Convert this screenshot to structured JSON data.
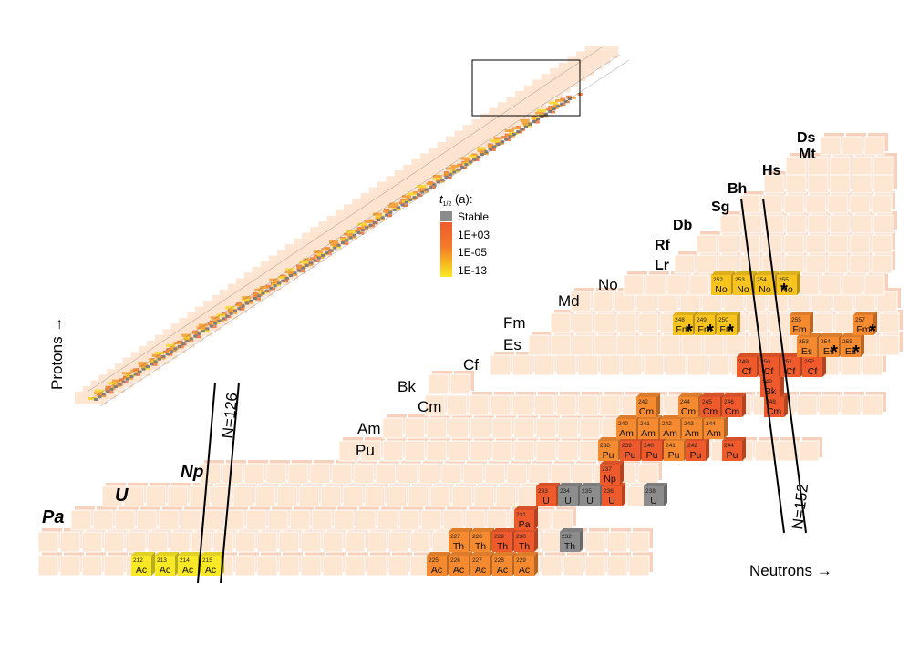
{
  "colors": {
    "stable": "#8c8c8c",
    "long": "#ee5a2c",
    "medium": "#f58a30",
    "short": "#f7c31e",
    "veryshort": "#f9e826",
    "background_cell": "#fde6d2",
    "background_cell_side": "#f7d1bb"
  },
  "legend": {
    "title_symbol": "t",
    "title_sub": "1/2",
    "title_unit": " (a):",
    "items": [
      {
        "label": "Stable",
        "color": "#8c8c8c"
      },
      {
        "label": "1E+03",
        "color": "#ee5a2c"
      },
      {
        "label": "1E-05",
        "color": "#f7a21e"
      },
      {
        "label": "1E-13",
        "color": "#f9e826"
      }
    ]
  },
  "axes": {
    "protons_label": "Protons →",
    "neutrons_label": "Neutrons →",
    "magic_left": "N=126",
    "magic_right": "N=152"
  },
  "element_labels": [
    {
      "text": "Pa",
      "style": "italic-bold"
    },
    {
      "text": "U",
      "style": "italic-bold"
    },
    {
      "text": "Np",
      "style": "italic-bold"
    },
    {
      "text": "Pu",
      "style": "normal"
    },
    {
      "text": "Am",
      "style": "normal"
    },
    {
      "text": "Cm",
      "style": "normal"
    },
    {
      "text": "Bk",
      "style": "normal"
    },
    {
      "text": "Cf",
      "style": "normal"
    },
    {
      "text": "Es",
      "style": "normal"
    },
    {
      "text": "Fm",
      "style": "normal"
    },
    {
      "text": "Md",
      "style": "normal"
    },
    {
      "text": "No",
      "style": "normal"
    },
    {
      "text": "Lr",
      "style": "bold"
    },
    {
      "text": "Rf",
      "style": "bold"
    },
    {
      "text": "Db",
      "style": "bold"
    },
    {
      "text": "Sg",
      "style": "bold"
    },
    {
      "text": "Bh",
      "style": "bold"
    },
    {
      "text": "Hs",
      "style": "bold"
    },
    {
      "text": "Mt",
      "style": "bold"
    },
    {
      "text": "Ds",
      "style": "bold"
    }
  ],
  "nuclides": [
    {
      "mass": "212",
      "symbol": "Ac",
      "category": "veryshort"
    },
    {
      "mass": "213",
      "symbol": "Ac",
      "category": "veryshort"
    },
    {
      "mass": "214",
      "symbol": "Ac",
      "category": "veryshort"
    },
    {
      "mass": "215",
      "symbol": "Ac",
      "category": "veryshort"
    },
    {
      "mass": "225",
      "symbol": "Ac",
      "category": "medium"
    },
    {
      "mass": "226",
      "symbol": "Ac",
      "category": "medium"
    },
    {
      "mass": "227",
      "symbol": "Ac",
      "category": "medium"
    },
    {
      "mass": "228",
      "symbol": "Ac",
      "category": "medium"
    },
    {
      "mass": "229",
      "symbol": "Ac",
      "category": "medium"
    },
    {
      "mass": "227",
      "symbol": "Th",
      "category": "medium"
    },
    {
      "mass": "228",
      "symbol": "Th",
      "category": "medium"
    },
    {
      "mass": "229",
      "symbol": "Th",
      "category": "long"
    },
    {
      "mass": "230",
      "symbol": "Th",
      "category": "long"
    },
    {
      "mass": "232",
      "symbol": "Th",
      "category": "stable"
    },
    {
      "mass": "231",
      "symbol": "Pa",
      "category": "long"
    },
    {
      "mass": "233",
      "symbol": "U",
      "category": "long"
    },
    {
      "mass": "234",
      "symbol": "U",
      "category": "stable"
    },
    {
      "mass": "235",
      "symbol": "U",
      "category": "stable"
    },
    {
      "mass": "236",
      "symbol": "U",
      "category": "long"
    },
    {
      "mass": "238",
      "symbol": "U",
      "category": "stable"
    },
    {
      "mass": "237",
      "symbol": "Np",
      "category": "long"
    },
    {
      "mass": "238",
      "symbol": "Pu",
      "category": "medium"
    },
    {
      "mass": "239",
      "symbol": "Pu",
      "category": "long"
    },
    {
      "mass": "240",
      "symbol": "Pu",
      "category": "long"
    },
    {
      "mass": "241",
      "symbol": "Pu",
      "category": "medium"
    },
    {
      "mass": "242",
      "symbol": "Pu",
      "category": "long"
    },
    {
      "mass": "244",
      "symbol": "Pu",
      "category": "long"
    },
    {
      "mass": "240",
      "symbol": "Am",
      "category": "medium"
    },
    {
      "mass": "241",
      "symbol": "Am",
      "category": "medium"
    },
    {
      "mass": "242",
      "symbol": "Am",
      "category": "medium"
    },
    {
      "mass": "243",
      "symbol": "Am",
      "category": "medium"
    },
    {
      "mass": "244",
      "symbol": "Am",
      "category": "medium"
    },
    {
      "mass": "242",
      "symbol": "Cm",
      "category": "medium"
    },
    {
      "mass": "244",
      "symbol": "Cm",
      "category": "medium"
    },
    {
      "mass": "245",
      "symbol": "Cm",
      "category": "long"
    },
    {
      "mass": "246",
      "symbol": "Cm",
      "category": "long"
    },
    {
      "mass": "248",
      "symbol": "Cm",
      "category": "long"
    },
    {
      "mass": "249",
      "symbol": "Bk",
      "category": "long"
    },
    {
      "mass": "249",
      "symbol": "Cf",
      "category": "long"
    },
    {
      "mass": "250",
      "symbol": "Cf",
      "category": "long"
    },
    {
      "mass": "251",
      "symbol": "Cf",
      "category": "long"
    },
    {
      "mass": "252",
      "symbol": "Cf",
      "category": "long"
    },
    {
      "mass": "253",
      "symbol": "Es",
      "category": "medium"
    },
    {
      "mass": "254",
      "symbol": "Es",
      "category": "medium"
    },
    {
      "mass": "255",
      "symbol": "Es",
      "category": "medium"
    },
    {
      "mass": "248",
      "symbol": "Fm",
      "category": "short"
    },
    {
      "mass": "249",
      "symbol": "Fm",
      "category": "short"
    },
    {
      "mass": "250",
      "symbol": "Fm",
      "category": "short"
    },
    {
      "mass": "255",
      "symbol": "Fm",
      "category": "medium"
    },
    {
      "mass": "257",
      "symbol": "Fm",
      "category": "medium"
    },
    {
      "mass": "252",
      "symbol": "No",
      "category": "short"
    },
    {
      "mass": "253",
      "symbol": "No",
      "category": "short"
    },
    {
      "mass": "254",
      "symbol": "No",
      "category": "short"
    },
    {
      "mass": "255",
      "symbol": "No",
      "category": "short"
    }
  ],
  "star_marker": "*"
}
